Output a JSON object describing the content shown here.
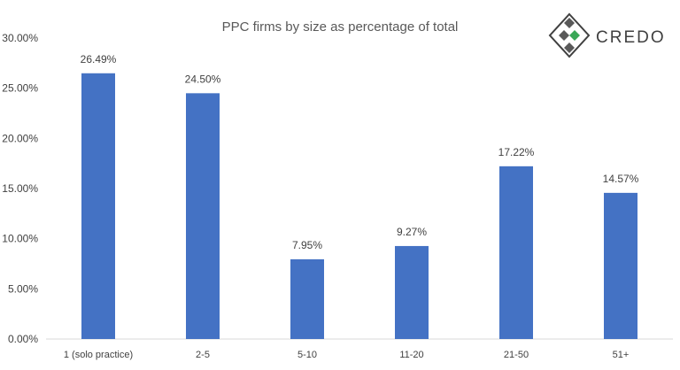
{
  "brand": {
    "name": "CREDO",
    "colors": {
      "outline": "#404040",
      "dark_square": "#595959",
      "accent": "#3aa757"
    }
  },
  "chart_data": {
    "type": "bar",
    "title": "PPC firms by size as percentage of total",
    "xlabel": "",
    "ylabel": "",
    "categories": [
      "1 (solo practice)",
      "2-5",
      "5-10",
      "11-20",
      "21-50",
      "51+"
    ],
    "values": [
      26.49,
      24.5,
      7.95,
      9.27,
      17.22,
      14.57
    ],
    "value_labels": [
      "26.49%",
      "24.50%",
      "7.95%",
      "9.27%",
      "17.22%",
      "14.57%"
    ],
    "ylim": [
      0,
      30
    ],
    "yticks": [
      0,
      5,
      10,
      15,
      20,
      25,
      30
    ],
    "ytick_labels": [
      "0.00%",
      "5.00%",
      "10.00%",
      "15.00%",
      "20.00%",
      "25.00%",
      "30.00%"
    ],
    "grid": false,
    "legend": "none",
    "bar_color": "#4472c4"
  }
}
